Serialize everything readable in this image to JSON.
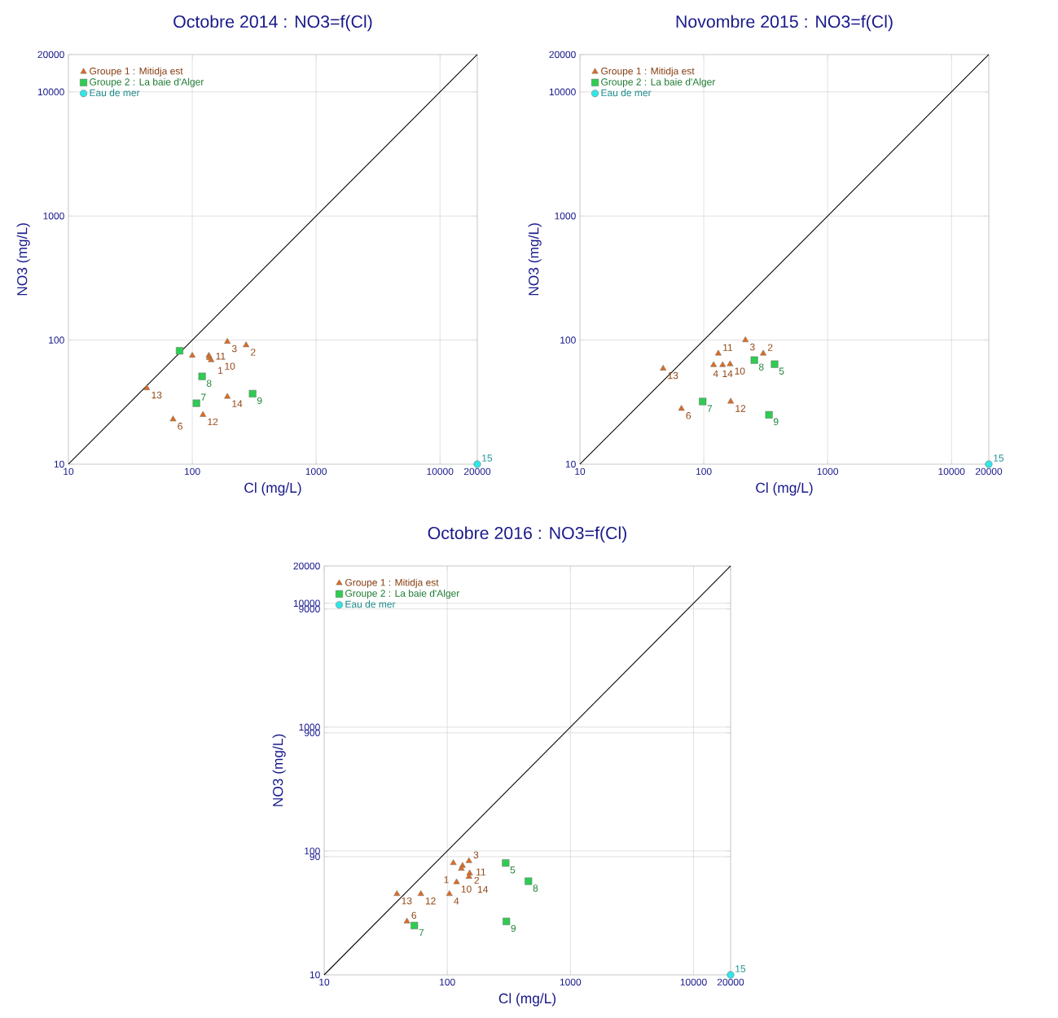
{
  "chart_data": [
    {
      "type": "scatter",
      "title": "Octobre 2014 : NO3=f(Cl)",
      "xlabel": "Cl (mg/L)",
      "ylabel": "NO3 (mg/L)",
      "log": "xy",
      "grid": true,
      "legend": "top left",
      "xlim": [
        10,
        20000
      ],
      "ylim": [
        10,
        20000
      ],
      "xticks": [
        10,
        100,
        1000,
        10000,
        20000
      ],
      "yticks": [
        10,
        100,
        1000,
        10000,
        20000
      ],
      "series": [
        {
          "name": "Groupe 1 : Mitidja est",
          "color": "#e06a1e",
          "marker": "triangle",
          "x": [
            272,
            192,
            100,
            136,
            137,
            142,
            43,
            192,
            70,
            122
          ],
          "values": [
            91,
            97,
            75,
            75,
            72,
            69,
            41,
            35,
            23,
            25
          ]
        },
        {
          "name": "Groupe 2 : La baie d'Alger",
          "color": "#2ecc52",
          "marker": "square",
          "x": [
            79,
            120,
            108,
            307
          ],
          "values": [
            82,
            51,
            31,
            37
          ]
        },
        {
          "name": "Eau de mer",
          "color": "#33e6e6",
          "marker": "circle",
          "x": [
            20000
          ],
          "values": [
            10
          ]
        },
        {
          "type": "line",
          "color": "#000000",
          "marker": "none",
          "x": [
            10,
            20000
          ],
          "values": [
            10,
            20000
          ]
        }
      ],
      "annotations": [
        {
          "text": "2",
          "x": 272,
          "y": 91
        },
        {
          "text": "3",
          "x": 192,
          "y": 97
        },
        {
          "text": "11",
          "x": 136,
          "y": 75
        },
        {
          "text": "1",
          "x": 137,
          "y": 72
        },
        {
          "text": "10",
          "x": 142,
          "y": 69
        },
        {
          "text": "13",
          "x": 43,
          "y": 41
        },
        {
          "text": "14",
          "x": 192,
          "y": 35
        },
        {
          "text": "6",
          "x": 70,
          "y": 23
        },
        {
          "text": "12",
          "x": 122,
          "y": 25
        },
        {
          "text": "8",
          "x": 120,
          "y": 51
        },
        {
          "text": "7",
          "x": 108,
          "y": 31
        },
        {
          "text": "9",
          "x": 307,
          "y": 37
        },
        {
          "text": "15",
          "x": 20000,
          "y": 10
        }
      ]
    },
    {
      "type": "scatter",
      "title": "Novombre 2015 : NO3=f(Cl)",
      "xlabel": "Cl (mg/L)",
      "ylabel": "NO3 (mg/L)",
      "log": "xy",
      "grid": true,
      "legend": "top left",
      "xlim": [
        10,
        20000
      ],
      "ylim": [
        10,
        20000
      ],
      "xticks": [
        10,
        100,
        1000,
        10000,
        20000
      ],
      "yticks": [
        10,
        100,
        1000,
        10000,
        20000
      ],
      "series": [
        {
          "name": "Groupe 1 : Mitidja est",
          "color": "#e06a1e",
          "marker": "triangle",
          "x": [
            217,
            302,
            131,
            120,
            142,
            163,
            47,
            66,
            165
          ],
          "values": [
            100,
            78,
            78,
            63,
            63,
            64,
            59,
            28,
            32
          ]
        },
        {
          "name": "Groupe 2 : La baie d'Alger",
          "color": "#2ecc52",
          "marker": "square",
          "x": [
            256,
            373,
            98,
            336
          ],
          "values": [
            69,
            64,
            32,
            25
          ]
        },
        {
          "name": "Eau de mer",
          "color": "#33e6e6",
          "marker": "circle",
          "x": [
            20000
          ],
          "values": [
            10
          ]
        },
        {
          "type": "line",
          "color": "#000000",
          "marker": "none",
          "x": [
            10,
            20000
          ],
          "values": [
            10,
            20000
          ]
        }
      ],
      "annotations": [
        {
          "text": "3",
          "x": 217,
          "y": 100
        },
        {
          "text": "2",
          "x": 302,
          "y": 78
        },
        {
          "text": "11",
          "x": 131,
          "y": 78
        },
        {
          "text": "4",
          "x": 120,
          "y": 63
        },
        {
          "text": "14",
          "x": 142,
          "y": 63
        },
        {
          "text": "10",
          "x": 163,
          "y": 64
        },
        {
          "text": "13",
          "x": 47,
          "y": 59
        },
        {
          "text": "6",
          "x": 66,
          "y": 28
        },
        {
          "text": "12",
          "x": 165,
          "y": 32
        },
        {
          "text": "8",
          "x": 256,
          "y": 69
        },
        {
          "text": "5",
          "x": 373,
          "y": 64
        },
        {
          "text": "7",
          "x": 98,
          "y": 32
        },
        {
          "text": "9",
          "x": 336,
          "y": 25
        },
        {
          "text": "15",
          "x": 20000,
          "y": 10
        }
      ]
    },
    {
      "type": "scatter",
      "title": "Octobre 2016 : NO3=f(Cl)",
      "xlabel": "Cl (mg/L)",
      "ylabel": "NO3 (mg/L)",
      "log": "xy",
      "grid": true,
      "legend": "top left",
      "xlim": [
        10,
        20000
      ],
      "ylim": [
        10,
        20000
      ],
      "xticks": [
        10,
        100,
        1000,
        10000,
        20000
      ],
      "yticks": [
        10,
        90,
        100,
        900,
        1000,
        9000,
        10000,
        20000
      ],
      "series": [
        {
          "name": "Groupe 1 : Mitidja est",
          "color": "#e06a1e",
          "marker": "triangle",
          "x": [
            112,
            150,
            133,
            130,
            152,
            150,
            119,
            104,
            61,
            39,
            47
          ],
          "values": [
            80,
            83,
            76,
            72,
            66,
            62,
            56,
            45,
            45,
            45,
            27
          ]
        },
        {
          "name": "Groupe 2 : La baie d'Alger",
          "color": "#2ecc52",
          "marker": "square",
          "x": [
            54,
            298,
            456,
            302
          ],
          "values": [
            25,
            80,
            57,
            27
          ]
        },
        {
          "name": "Eau de mer",
          "color": "#33e6e6",
          "marker": "circle",
          "x": [
            20000
          ],
          "values": [
            10
          ]
        },
        {
          "type": "line",
          "color": "#000000",
          "marker": "none",
          "x": [
            10,
            20000
          ],
          "values": [
            10,
            20000
          ]
        }
      ],
      "annotations": [
        {
          "text": "3",
          "x": 150,
          "y": 83
        },
        {
          "text": "11",
          "x": 133,
          "y": 76
        },
        {
          "text": "1",
          "x": 130,
          "y": 72
        },
        {
          "text": "2",
          "x": 152,
          "y": 66
        },
        {
          "text": "14",
          "x": 150,
          "y": 62
        },
        {
          "text": "10",
          "x": 119,
          "y": 56
        },
        {
          "text": "4",
          "x": 104,
          "y": 45
        },
        {
          "text": "12",
          "x": 61,
          "y": 45
        },
        {
          "text": "13",
          "x": 39,
          "y": 45
        },
        {
          "text": "6",
          "x": 47,
          "y": 27
        },
        {
          "text": "7",
          "x": 54,
          "y": 25
        },
        {
          "text": "5",
          "x": 298,
          "y": 80
        },
        {
          "text": "8",
          "x": 456,
          "y": 57
        },
        {
          "text": "9",
          "x": 302,
          "y": 27
        },
        {
          "text": "15",
          "x": 20000,
          "y": 10
        }
      ]
    }
  ]
}
